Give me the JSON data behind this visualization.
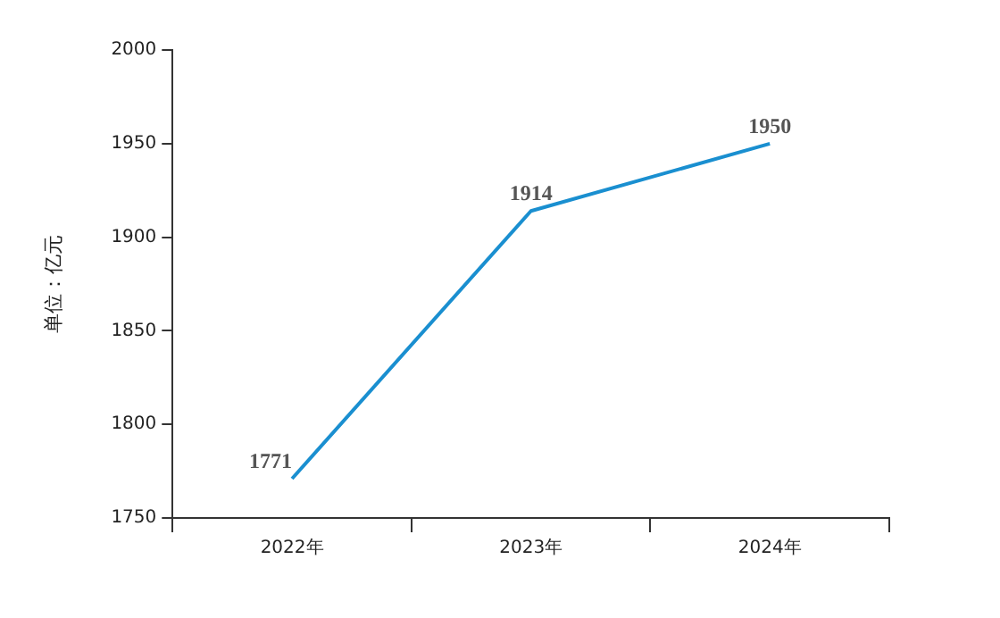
{
  "chart_data": {
    "type": "line",
    "ylabel": "单位：亿元",
    "categories": [
      "2022年",
      "2023年",
      "2024年"
    ],
    "series": [
      {
        "color": "#1a8fd0",
        "values": [
          1771,
          1914,
          1950
        ]
      }
    ],
    "ylim": [
      1750,
      2000
    ],
    "yticks": [
      1750,
      1800,
      1850,
      1900,
      1950,
      2000
    ],
    "grid": false,
    "legend": false,
    "data_labels": true,
    "marker": "none",
    "line_style": "solid"
  }
}
